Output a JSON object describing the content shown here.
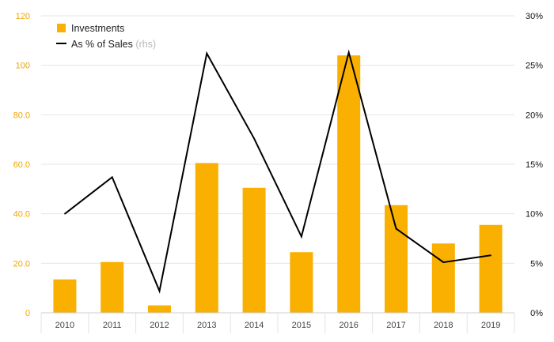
{
  "chart_data": {
    "type": "bar",
    "categories": [
      "2010",
      "2011",
      "2012",
      "2013",
      "2014",
      "2015",
      "2016",
      "2017",
      "2018",
      "2019"
    ],
    "series": [
      {
        "name": "Investments",
        "type": "bar",
        "axis": "left",
        "color": "#f9b000",
        "values": [
          13.5,
          20.5,
          3.0,
          60.5,
          50.5,
          24.5,
          104.0,
          43.5,
          28.0,
          35.5
        ]
      },
      {
        "name": "As % of Sales",
        "type": "line",
        "axis": "right",
        "color": "#000000",
        "values": [
          10.0,
          13.7,
          2.2,
          26.2,
          17.6,
          7.7,
          26.3,
          8.5,
          5.1,
          5.8
        ]
      }
    ],
    "legend": {
      "position": "top-left",
      "items": [
        {
          "label": "Investments",
          "suffix": ""
        },
        {
          "label": "As % of Sales",
          "suffix": "(rhs)"
        }
      ]
    },
    "y_left": {
      "ylim": [
        0,
        120
      ],
      "ticks": [
        "0",
        "20.0",
        "40.0",
        "60.0",
        "80.0",
        "100",
        "120"
      ],
      "tick_values": [
        0,
        20,
        40,
        60,
        80,
        100,
        120
      ]
    },
    "y_right": {
      "ylim": [
        0,
        30
      ],
      "ticks": [
        "0%",
        "5%",
        "10%",
        "15%",
        "20%",
        "25%",
        "30%"
      ],
      "tick_values": [
        0,
        5,
        10,
        15,
        20,
        25,
        30
      ]
    },
    "grid": true,
    "colors": {
      "bar": "#f9b000",
      "line": "#000000",
      "grid": "#e6e6e6",
      "left_tick": "#f0a500"
    }
  }
}
